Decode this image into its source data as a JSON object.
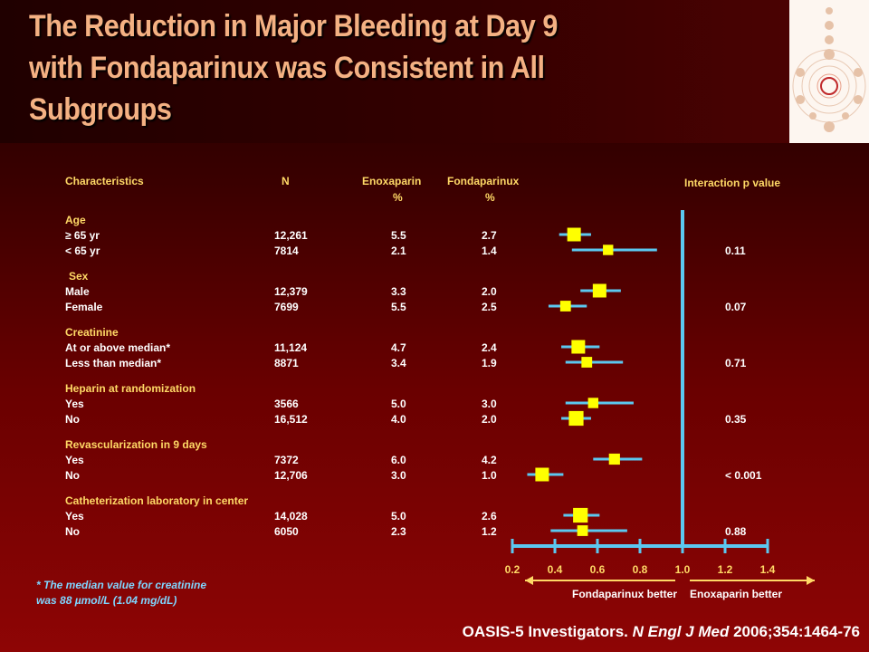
{
  "slide": {
    "title_lines": [
      "The Reduction in Major Bleeding at Day 9",
      "with Fondaparinux was Consistent in All",
      "Subgroups"
    ],
    "footnote_lines": [
      "* The median value for creatinine",
      "was 88 µmol/L (1.04 mg/dL)"
    ],
    "citation": {
      "authors": "OASIS-5 Investigators.",
      "journal": "N Engl J Med",
      "ref": "2006;354:1464-76"
    }
  },
  "colors": {
    "accent_text": "#ffd966",
    "ci_line": "#5bc8f0",
    "box": "#ffff00",
    "arrow": "#ffd966",
    "footnote": "#7fd6ff"
  },
  "chart_data": {
    "type": "forest",
    "columns": {
      "characteristics": "Characteristics",
      "n": "N",
      "enoxaparin": [
        "Enoxaparin",
        "%"
      ],
      "fondaparinux": [
        "Fondaparinux",
        "%"
      ],
      "interaction": "Interaction p value"
    },
    "axis": {
      "ticks": [
        "0.2",
        "0.4",
        "0.6",
        "0.8",
        "1.0",
        "1.2",
        "1.4"
      ],
      "range": [
        0.2,
        1.4
      ],
      "reference_line": 1.0,
      "left_label": "Fondaparinux better",
      "right_label": "Enoxaparin better"
    },
    "groups": [
      {
        "name": "Age",
        "p_value": "0.11",
        "rows": [
          {
            "label": "≥ 65 yr",
            "n": "12,261",
            "enox": "5.5",
            "fonda": "2.7",
            "hr": 0.49,
            "lo": 0.42,
            "hi": 0.57,
            "weight": 1.0
          },
          {
            "label": "< 65 yr",
            "n": "7814",
            "enox": "2.1",
            "fonda": "1.4",
            "hr": 0.65,
            "lo": 0.48,
            "hi": 0.88,
            "weight": 0.55
          }
        ]
      },
      {
        "name": "Sex",
        "p_value": "0.07",
        "rows": [
          {
            "label": "Male",
            "n": "12,379",
            "enox": "3.3",
            "fonda": "2.0",
            "hr": 0.61,
            "lo": 0.52,
            "hi": 0.71,
            "weight": 1.0
          },
          {
            "label": "Female",
            "n": "7699",
            "enox": "5.5",
            "fonda": "2.5",
            "hr": 0.45,
            "lo": 0.37,
            "hi": 0.55,
            "weight": 0.6
          }
        ]
      },
      {
        "name": "Creatinine",
        "p_value": "0.71",
        "rows": [
          {
            "label": "At or above median*",
            "n": "11,124",
            "enox": "4.7",
            "fonda": "2.4",
            "hr": 0.51,
            "lo": 0.43,
            "hi": 0.61,
            "weight": 1.0
          },
          {
            "label": "Less than median*",
            "n": "8871",
            "enox": "3.4",
            "fonda": "1.9",
            "hr": 0.55,
            "lo": 0.45,
            "hi": 0.72,
            "weight": 0.6
          }
        ]
      },
      {
        "name": "Heparin at randomization",
        "p_value": "0.35",
        "rows": [
          {
            "label": "Yes",
            "n": "3566",
            "enox": "5.0",
            "fonda": "3.0",
            "hr": 0.58,
            "lo": 0.45,
            "hi": 0.77,
            "weight": 0.55
          },
          {
            "label": "No",
            "n": "16,512",
            "enox": "4.0",
            "fonda": "2.0",
            "hr": 0.5,
            "lo": 0.43,
            "hi": 0.57,
            "weight": 1.15
          }
        ]
      },
      {
        "name": "Revascularization in 9 days",
        "p_value": "< 0.001",
        "rows": [
          {
            "label": "Yes",
            "n": "7372",
            "enox": "6.0",
            "fonda": "4.2",
            "hr": 0.68,
            "lo": 0.58,
            "hi": 0.81,
            "weight": 0.65
          },
          {
            "label": "No",
            "n": "12,706",
            "enox": "3.0",
            "fonda": "1.0",
            "hr": 0.34,
            "lo": 0.27,
            "hi": 0.44,
            "weight": 1.0
          }
        ]
      },
      {
        "name": "Catheterization laboratory in center",
        "p_value": "0.88",
        "rows": [
          {
            "label": "Yes",
            "n": "14,028",
            "enox": "5.0",
            "fonda": "2.6",
            "hr": 0.52,
            "lo": 0.44,
            "hi": 0.61,
            "weight": 1.15
          },
          {
            "label": "No",
            "n": "6050",
            "enox": "2.3",
            "fonda": "1.2",
            "hr": 0.53,
            "lo": 0.38,
            "hi": 0.74,
            "weight": 0.6
          }
        ]
      }
    ]
  }
}
